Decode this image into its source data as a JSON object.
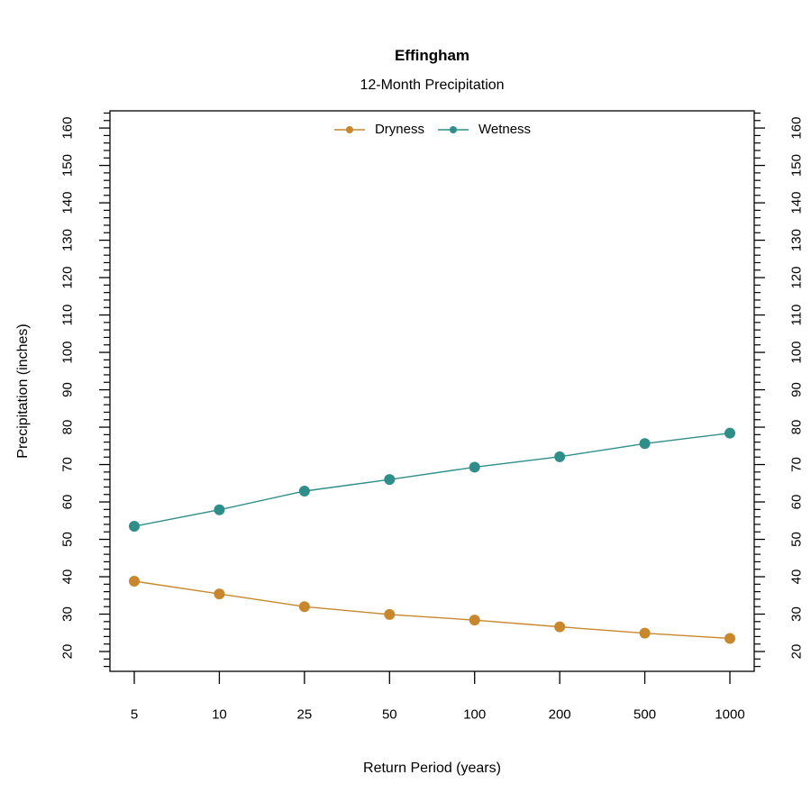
{
  "chart_data": {
    "type": "line",
    "title": "Effingham",
    "subtitle": "12-Month Precipitation",
    "xlabel": "Return Period (years)",
    "ylabel": "Precipitation (inches)",
    "categories": [
      "5",
      "10",
      "25",
      "50",
      "100",
      "200",
      "500",
      "1000"
    ],
    "series": [
      {
        "name": "Dryness",
        "color": "#C8872D",
        "values": [
          38.8,
          35.4,
          32.0,
          29.9,
          28.4,
          26.6,
          24.9,
          23.5
        ]
      },
      {
        "name": "Wetness",
        "color": "#2F8E89",
        "values": [
          53.5,
          57.9,
          62.9,
          66.0,
          69.3,
          72.1,
          75.6,
          78.4
        ]
      }
    ],
    "ylim": [
      14.7,
      164.6
    ],
    "yticks": [
      20,
      30,
      40,
      50,
      60,
      70,
      80,
      90,
      100,
      110,
      120,
      130,
      140,
      150,
      160
    ],
    "y_minor_ticks": {
      "start": 16,
      "end": 164,
      "step": 2
    },
    "layout": {
      "legend_position": "top-center",
      "grid": false,
      "y_axis_sides": "left-and-right-mirrored",
      "y_tick_label_rotation": 90,
      "marker": "filled-circle"
    }
  }
}
